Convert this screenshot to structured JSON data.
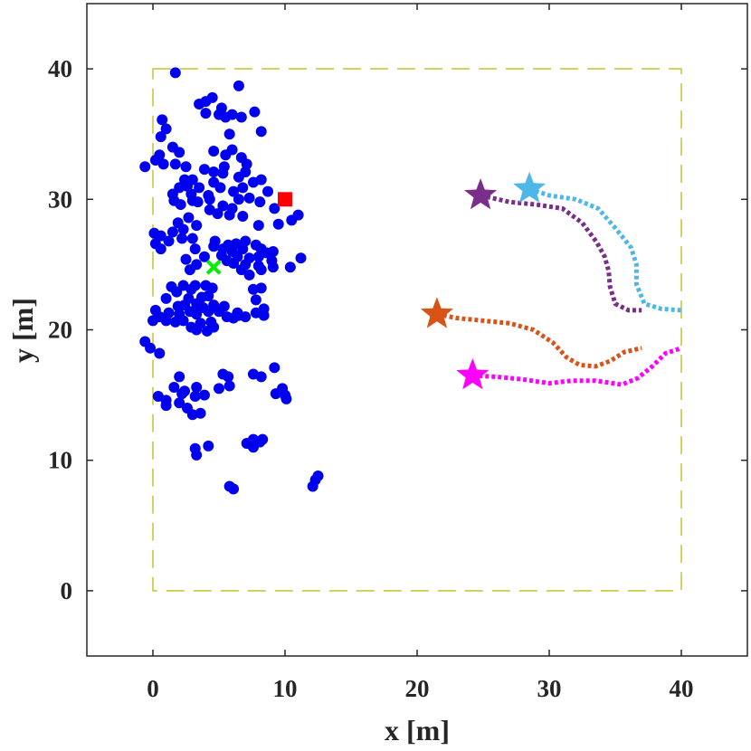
{
  "chart_data": {
    "type": "scatter",
    "xlabel": "x [m]",
    "ylabel": "y [m]",
    "xlim": [
      -5,
      45
    ],
    "ylim": [
      -5,
      45
    ],
    "xticks": [
      "0",
      "10",
      "20",
      "30",
      "40"
    ],
    "yticks": [
      "0",
      "10",
      "20",
      "30",
      "40"
    ],
    "grid": false,
    "boundary": {
      "x": [
        0,
        40
      ],
      "y": [
        0,
        40
      ],
      "color": "#c8c83c",
      "style": "dashed"
    },
    "point_color": "#0000ee",
    "points": [
      [
        1.7,
        39.7
      ],
      [
        3.5,
        37.3
      ],
      [
        4.0,
        37.5
      ],
      [
        4.5,
        37.8
      ],
      [
        6.5,
        38.7
      ],
      [
        5.2,
        37.0
      ],
      [
        7.7,
        36.7
      ],
      [
        4.0,
        36.6
      ],
      [
        5.0,
        36.5
      ],
      [
        5.5,
        36.3
      ],
      [
        6.0,
        36.5
      ],
      [
        6.7,
        36.3
      ],
      [
        0.7,
        36.1
      ],
      [
        1.0,
        35.4
      ],
      [
        0.6,
        34.8
      ],
      [
        8.2,
        35.2
      ],
      [
        5.8,
        35.0
      ],
      [
        1.5,
        34.0
      ],
      [
        2.0,
        33.6
      ],
      [
        0.5,
        33.4
      ],
      [
        0.2,
        33.0
      ],
      [
        4.6,
        33.7
      ],
      [
        5.5,
        33.4
      ],
      [
        6.0,
        33.8
      ],
      [
        6.7,
        33.2
      ],
      [
        7.1,
        32.7
      ],
      [
        0.8,
        32.7
      ],
      [
        -0.6,
        32.5
      ],
      [
        1.7,
        32.7
      ],
      [
        2.5,
        32.5
      ],
      [
        3.9,
        32.3
      ],
      [
        4.6,
        32.1
      ],
      [
        5.4,
        32.5
      ],
      [
        7.0,
        32.1
      ],
      [
        6.5,
        31.7
      ],
      [
        5.3,
        32.0
      ],
      [
        3.0,
        31.5
      ],
      [
        2.4,
        31.5
      ],
      [
        2.6,
        31.0
      ],
      [
        3.5,
        30.9
      ],
      [
        4.6,
        31.3
      ],
      [
        2.0,
        30.9
      ],
      [
        1.5,
        30.4
      ],
      [
        2.9,
        30.4
      ],
      [
        4.2,
        30.3
      ],
      [
        5.1,
        30.9
      ],
      [
        6.8,
        30.9
      ],
      [
        7.6,
        31.3
      ],
      [
        8.2,
        31.5
      ],
      [
        8.7,
        30.6
      ],
      [
        6.1,
        30.6
      ],
      [
        4.3,
        30.0
      ],
      [
        3.0,
        29.9
      ],
      [
        1.6,
        29.9
      ],
      [
        2.1,
        29.6
      ],
      [
        3.4,
        29.8
      ],
      [
        5.3,
        29.5
      ],
      [
        6.0,
        29.3
      ],
      [
        6.5,
        30.0
      ],
      [
        7.3,
        30.1
      ],
      [
        8.1,
        29.8
      ],
      [
        9.2,
        29.3
      ],
      [
        4.9,
        28.9
      ],
      [
        4.3,
        29.2
      ],
      [
        5.8,
        28.8
      ],
      [
        6.8,
        28.7
      ],
      [
        2.7,
        28.6
      ],
      [
        1.9,
        28.2
      ],
      [
        3.3,
        28.0
      ],
      [
        8.0,
        28.0
      ],
      [
        10.5,
        28.4
      ],
      [
        11.0,
        28.8
      ],
      [
        9.5,
        28.1
      ],
      [
        2.3,
        27.7
      ],
      [
        1.5,
        27.5
      ],
      [
        0.1,
        27.4
      ],
      [
        0.6,
        27.2
      ],
      [
        1.2,
        26.8
      ],
      [
        2.2,
        27.0
      ],
      [
        3.0,
        27.0
      ],
      [
        4.7,
        26.8
      ],
      [
        5.7,
        26.5
      ],
      [
        6.3,
        26.6
      ],
      [
        7.0,
        26.8
      ],
      [
        7.8,
        26.5
      ],
      [
        8.2,
        26.2
      ],
      [
        9.1,
        26.0
      ],
      [
        0.2,
        26.6
      ],
      [
        0.6,
        26.2
      ],
      [
        3.2,
        26.2
      ],
      [
        4.6,
        26.4
      ],
      [
        5.3,
        26.2
      ],
      [
        6.0,
        26.0
      ],
      [
        6.8,
        26.2
      ],
      [
        5.2,
        25.7
      ],
      [
        5.6,
        25.3
      ],
      [
        6.4,
        25.6
      ],
      [
        7.3,
        25.5
      ],
      [
        8.0,
        25.6
      ],
      [
        8.6,
        25.9
      ],
      [
        9.0,
        25.3
      ],
      [
        11.2,
        25.5
      ],
      [
        2.5,
        25.4
      ],
      [
        3.3,
        25.0
      ],
      [
        3.9,
        25.6
      ],
      [
        6.1,
        25.1
      ],
      [
        7.0,
        25.0
      ],
      [
        8.0,
        24.9
      ],
      [
        9.1,
        24.8
      ],
      [
        10.4,
        24.8
      ],
      [
        2.8,
        24.6
      ],
      [
        6.7,
        24.6
      ],
      [
        7.3,
        24.2
      ],
      [
        8.2,
        24.6
      ],
      [
        3.2,
        23.4
      ],
      [
        4.0,
        23.4
      ],
      [
        1.4,
        23.3
      ],
      [
        2.3,
        23.4
      ],
      [
        2.9,
        23.1
      ],
      [
        4.5,
        23.2
      ],
      [
        8.2,
        23.2
      ],
      [
        7.6,
        23.1
      ],
      [
        1.8,
        22.9
      ],
      [
        3.7,
        22.5
      ],
      [
        4.2,
        22.6
      ],
      [
        1.0,
        22.4
      ],
      [
        2.7,
        22.4
      ],
      [
        3.3,
        22.0
      ],
      [
        1.9,
        21.8
      ],
      [
        2.4,
        21.9
      ],
      [
        3.8,
        21.7
      ],
      [
        4.6,
        21.9
      ],
      [
        5.4,
        21.8
      ],
      [
        7.8,
        22.3
      ],
      [
        8.4,
        21.6
      ],
      [
        0.2,
        21.5
      ],
      [
        1.2,
        21.3
      ],
      [
        2.0,
        21.2
      ],
      [
        2.8,
        21.4
      ],
      [
        3.3,
        21.2
      ],
      [
        4.2,
        21.4
      ],
      [
        5.0,
        21.4
      ],
      [
        5.6,
        21.0
      ],
      [
        6.4,
        21.3
      ],
      [
        7.0,
        21.0
      ],
      [
        7.8,
        21.3
      ],
      [
        8.4,
        21.1
      ],
      [
        0.0,
        20.7
      ],
      [
        0.5,
        21.0
      ],
      [
        1.0,
        20.7
      ],
      [
        1.7,
        20.6
      ],
      [
        2.3,
        20.7
      ],
      [
        2.9,
        20.2
      ],
      [
        3.6,
        20.5
      ],
      [
        4.4,
        20.6
      ],
      [
        6.1,
        20.9
      ],
      [
        6.5,
        21.1
      ],
      [
        3.3,
        20.0
      ],
      [
        4.1,
        19.9
      ],
      [
        4.6,
        20.2
      ],
      [
        -0.6,
        19.1
      ],
      [
        -0.2,
        18.6
      ],
      [
        0.5,
        18.2
      ],
      [
        2.0,
        16.4
      ],
      [
        5.3,
        16.6
      ],
      [
        5.7,
        16.4
      ],
      [
        7.6,
        16.6
      ],
      [
        8.2,
        16.4
      ],
      [
        9.2,
        17.1
      ],
      [
        1.6,
        15.6
      ],
      [
        2.4,
        15.3
      ],
      [
        3.3,
        15.6
      ],
      [
        5.0,
        15.5
      ],
      [
        5.8,
        15.7
      ],
      [
        9.3,
        15.1
      ],
      [
        9.8,
        15.5
      ],
      [
        10.0,
        15.0
      ],
      [
        0.4,
        14.9
      ],
      [
        1.0,
        14.6
      ],
      [
        2.0,
        14.4
      ],
      [
        3.2,
        14.9
      ],
      [
        3.9,
        15.0
      ],
      [
        2.6,
        14.0
      ],
      [
        3.0,
        13.5
      ],
      [
        3.6,
        13.6
      ],
      [
        1.0,
        14.2
      ],
      [
        10.1,
        14.7
      ],
      [
        2.2,
        15.1
      ],
      [
        7.6,
        11.6
      ],
      [
        8.1,
        11.4
      ],
      [
        8.3,
        11.6
      ],
      [
        7.1,
        11.3
      ],
      [
        7.6,
        11.0
      ],
      [
        3.2,
        10.9
      ],
      [
        4.2,
        11.1
      ],
      [
        3.3,
        10.4
      ],
      [
        12.5,
        8.8
      ],
      [
        12.3,
        8.5
      ],
      [
        12.1,
        8.0
      ],
      [
        5.8,
        8.0
      ],
      [
        6.1,
        7.8
      ]
    ],
    "target": {
      "x": 4.6,
      "y": 24.8,
      "color": "#00ee00"
    },
    "square": {
      "x": 10.0,
      "y": 30.0,
      "color": "#ff0000"
    },
    "trajectories": [
      {
        "color": "#7b2d8b",
        "start": [
          24.8,
          30.3
        ],
        "path": [
          [
            24.8,
            30.3
          ],
          [
            27,
            29.8
          ],
          [
            29,
            29.6
          ],
          [
            31,
            29.3
          ],
          [
            32.5,
            28.2
          ],
          [
            33.6,
            26.7
          ],
          [
            34.2,
            25.6
          ],
          [
            34.5,
            24.5
          ],
          [
            34.6,
            23.3
          ],
          [
            35,
            22.0
          ],
          [
            36,
            21.5
          ],
          [
            37,
            21.5
          ]
        ]
      },
      {
        "color": "#4db8e8",
        "start": [
          28.5,
          30.8
        ],
        "path": [
          [
            28.5,
            30.8
          ],
          [
            30,
            30.3
          ],
          [
            32,
            30.0
          ],
          [
            33.7,
            29.3
          ],
          [
            35,
            27.8
          ],
          [
            36.2,
            26.3
          ],
          [
            36.6,
            25.0
          ],
          [
            36.6,
            23.5
          ],
          [
            37.2,
            22.0
          ],
          [
            38.5,
            21.6
          ],
          [
            40,
            21.5
          ]
        ]
      },
      {
        "color": "#d95319",
        "start": [
          21.5,
          21.2
        ],
        "path": [
          [
            21.5,
            21.2
          ],
          [
            23,
            20.9
          ],
          [
            25,
            20.7
          ],
          [
            27,
            20.5
          ],
          [
            28.8,
            20.0
          ],
          [
            30.3,
            19.0
          ],
          [
            31.3,
            17.9
          ],
          [
            32.3,
            17.3
          ],
          [
            33.5,
            17.2
          ],
          [
            34.6,
            17.6
          ],
          [
            35.7,
            18.3
          ],
          [
            37,
            18.6
          ]
        ]
      },
      {
        "color": "#ff00ff",
        "start": [
          24.2,
          16.5
        ],
        "path": [
          [
            24.2,
            16.5
          ],
          [
            26,
            16.4
          ],
          [
            28,
            16.2
          ],
          [
            30,
            15.9
          ],
          [
            31.7,
            16.1
          ],
          [
            33.5,
            16.1
          ],
          [
            35.5,
            15.8
          ],
          [
            36.7,
            16.3
          ],
          [
            37.8,
            17.2
          ],
          [
            38.8,
            18.2
          ],
          [
            40,
            18.6
          ]
        ]
      }
    ]
  }
}
